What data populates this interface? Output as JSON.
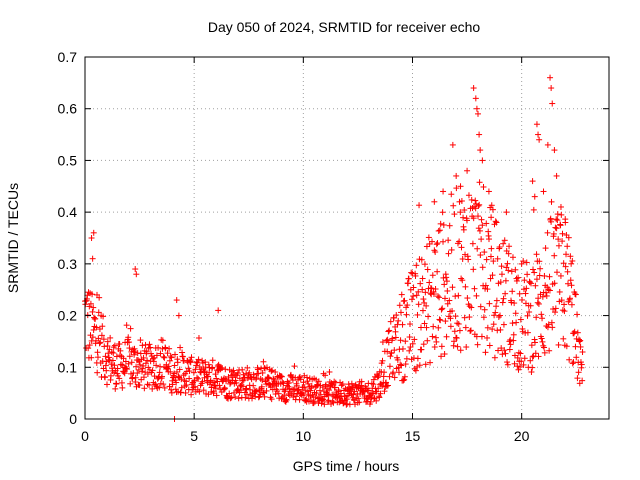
{
  "chart_data": {
    "type": "scatter",
    "title": "Day 050 of 2024, SRMTID for receiver echo",
    "xlabel": "GPS time / hours",
    "ylabel": "SRMTID / TECUs",
    "xlim": [
      0,
      24
    ],
    "ylim": [
      0,
      0.7
    ],
    "xticks": [
      0,
      5,
      10,
      15,
      20
    ],
    "yticks": [
      0,
      0.1,
      0.2,
      0.3,
      0.4,
      0.5,
      0.6,
      0.7
    ],
    "grid": true,
    "marker": "+",
    "color": "#ff0000",
    "profile": [
      [
        0.0,
        0.2
      ],
      [
        0.3,
        0.17
      ],
      [
        0.6,
        0.16
      ],
      [
        1.0,
        0.12
      ],
      [
        1.5,
        0.1
      ],
      [
        2.0,
        0.11
      ],
      [
        2.5,
        0.1
      ],
      [
        3.0,
        0.1
      ],
      [
        3.5,
        0.11
      ],
      [
        4.0,
        0.09
      ],
      [
        4.5,
        0.09
      ],
      [
        5.0,
        0.08
      ],
      [
        5.5,
        0.08
      ],
      [
        6.0,
        0.08
      ],
      [
        6.5,
        0.07
      ],
      [
        7.0,
        0.07
      ],
      [
        7.5,
        0.07
      ],
      [
        8.0,
        0.07
      ],
      [
        8.5,
        0.07
      ],
      [
        9.0,
        0.06
      ],
      [
        9.5,
        0.06
      ],
      [
        10.0,
        0.06
      ],
      [
        10.5,
        0.055
      ],
      [
        11.0,
        0.05
      ],
      [
        11.5,
        0.05
      ],
      [
        12.0,
        0.05
      ],
      [
        12.5,
        0.05
      ],
      [
        13.0,
        0.05
      ],
      [
        13.5,
        0.07
      ],
      [
        14.0,
        0.13
      ],
      [
        14.5,
        0.16
      ],
      [
        15.0,
        0.19
      ],
      [
        15.5,
        0.22
      ],
      [
        16.0,
        0.24
      ],
      [
        16.5,
        0.27
      ],
      [
        17.0,
        0.29
      ],
      [
        17.5,
        0.3
      ],
      [
        18.0,
        0.3
      ],
      [
        18.5,
        0.28
      ],
      [
        19.0,
        0.24
      ],
      [
        19.5,
        0.22
      ],
      [
        20.0,
        0.2
      ],
      [
        20.5,
        0.2
      ],
      [
        21.0,
        0.24
      ],
      [
        21.5,
        0.26
      ],
      [
        22.0,
        0.26
      ],
      [
        22.3,
        0.22
      ],
      [
        22.6,
        0.12
      ],
      [
        22.8,
        0.09
      ]
    ],
    "spikes": [
      [
        0.3,
        0.35
      ],
      [
        0.35,
        0.31
      ],
      [
        0.4,
        0.36
      ],
      [
        0.55,
        0.24
      ],
      [
        2.3,
        0.29
      ],
      [
        2.35,
        0.28
      ],
      [
        4.2,
        0.23
      ],
      [
        4.3,
        0.2
      ],
      [
        6.1,
        0.21
      ],
      [
        16.0,
        0.42
      ],
      [
        16.4,
        0.44
      ],
      [
        17.0,
        0.47
      ],
      [
        17.2,
        0.45
      ],
      [
        17.5,
        0.48
      ],
      [
        17.8,
        0.64
      ],
      [
        17.9,
        0.62
      ],
      [
        17.95,
        0.6
      ],
      [
        18.0,
        0.59
      ],
      [
        18.05,
        0.55
      ],
      [
        18.1,
        0.52
      ],
      [
        18.2,
        0.5
      ],
      [
        18.5,
        0.44
      ],
      [
        18.6,
        0.39
      ],
      [
        19.3,
        0.4
      ],
      [
        20.5,
        0.46
      ],
      [
        20.6,
        0.43
      ],
      [
        20.7,
        0.57
      ],
      [
        20.75,
        0.55
      ],
      [
        20.8,
        0.54
      ],
      [
        21.0,
        0.44
      ],
      [
        21.2,
        0.53
      ],
      [
        21.3,
        0.66
      ],
      [
        21.35,
        0.64
      ],
      [
        21.4,
        0.61
      ],
      [
        21.5,
        0.52
      ],
      [
        21.6,
        0.47
      ],
      [
        21.8,
        0.41
      ],
      [
        22.0,
        0.38
      ],
      [
        4.1,
        0.0
      ]
    ]
  }
}
